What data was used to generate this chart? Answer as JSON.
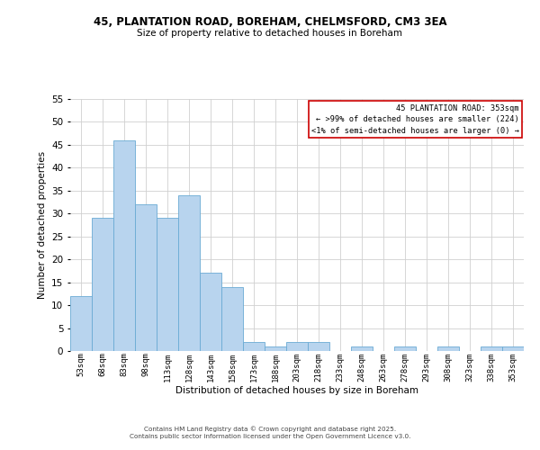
{
  "title": "45, PLANTATION ROAD, BOREHAM, CHELMSFORD, CM3 3EA",
  "subtitle": "Size of property relative to detached houses in Boreham",
  "xlabel": "Distribution of detached houses by size in Boreham",
  "ylabel": "Number of detached properties",
  "bar_color": "#b8d4ee",
  "bar_edge_color": "#6aaad4",
  "categories": [
    "53sqm",
    "68sqm",
    "83sqm",
    "98sqm",
    "113sqm",
    "128sqm",
    "143sqm",
    "158sqm",
    "173sqm",
    "188sqm",
    "203sqm",
    "218sqm",
    "233sqm",
    "248sqm",
    "263sqm",
    "278sqm",
    "293sqm",
    "308sqm",
    "323sqm",
    "338sqm",
    "353sqm"
  ],
  "values": [
    12,
    29,
    46,
    32,
    29,
    34,
    17,
    14,
    2,
    1,
    2,
    2,
    0,
    1,
    0,
    1,
    0,
    1,
    0,
    1,
    1
  ],
  "ylim": [
    0,
    55
  ],
  "yticks": [
    0,
    5,
    10,
    15,
    20,
    25,
    30,
    35,
    40,
    45,
    50,
    55
  ],
  "annotation_title": "45 PLANTATION ROAD: 353sqm",
  "annotation_line2": "← >99% of detached houses are smaller (224)",
  "annotation_line3": "<1% of semi-detached houses are larger (0) →",
  "annotation_box_color": "#cc0000",
  "footer_line1": "Contains HM Land Registry data © Crown copyright and database right 2025.",
  "footer_line2": "Contains public sector information licensed under the Open Government Licence v3.0.",
  "grid_color": "#d0d0d0",
  "bg_color": "#ffffff"
}
